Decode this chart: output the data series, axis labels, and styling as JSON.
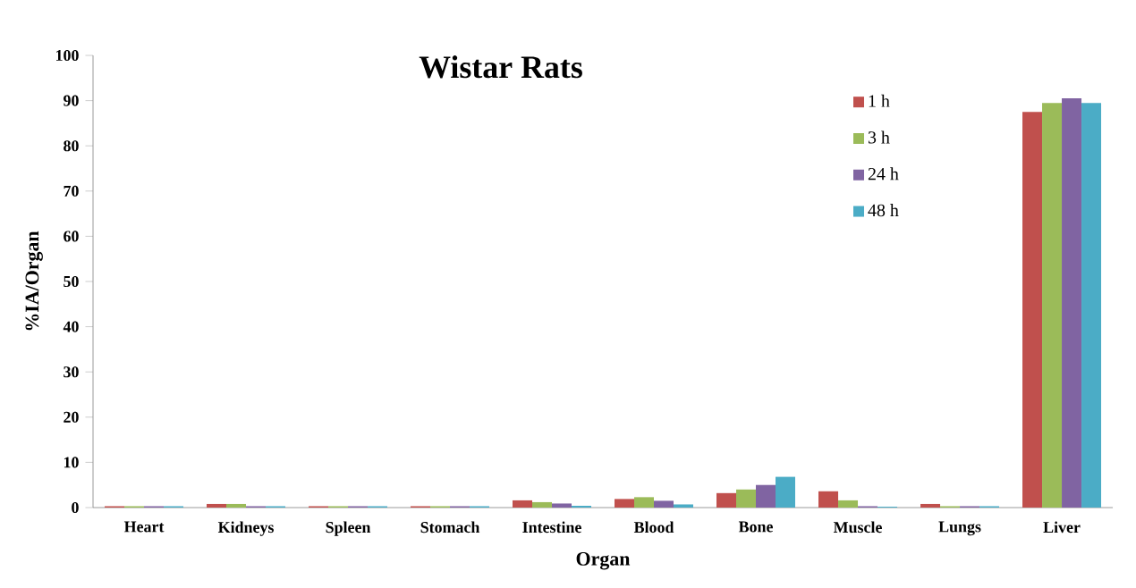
{
  "chart_data": {
    "type": "bar",
    "title": "Wistar Rats",
    "xlabel": "Organ",
    "ylabel": "%IA/Organ",
    "categories": [
      "Heart",
      "Kidneys",
      "Spleen",
      "Stomach",
      "Intestine",
      "Blood",
      "Bone",
      "Muscle",
      "Lungs",
      "Liver"
    ],
    "series": [
      {
        "name": "1 h",
        "color": "#c0504d",
        "values": [
          0.3,
          0.8,
          0.3,
          0.3,
          1.6,
          1.9,
          3.2,
          3.6,
          0.8,
          87.5
        ]
      },
      {
        "name": "3 h",
        "color": "#9bbb59",
        "values": [
          0.3,
          0.8,
          0.3,
          0.3,
          1.2,
          2.3,
          4.0,
          1.6,
          0.3,
          89.5
        ]
      },
      {
        "name": "24 h",
        "color": "#8064a2",
        "values": [
          0.3,
          0.3,
          0.3,
          0.3,
          0.9,
          1.5,
          5.0,
          0.3,
          0.3,
          90.5
        ]
      },
      {
        "name": "48 h",
        "color": "#4bacc6",
        "values": [
          0.3,
          0.3,
          0.3,
          0.3,
          0.4,
          0.7,
          6.8,
          0.2,
          0.3,
          89.5
        ]
      }
    ],
    "ylim": [
      0,
      100
    ],
    "yticks": [
      0,
      10,
      20,
      30,
      40,
      50,
      60,
      70,
      80,
      90,
      100
    ],
    "grid": false,
    "legend": "top right"
  }
}
